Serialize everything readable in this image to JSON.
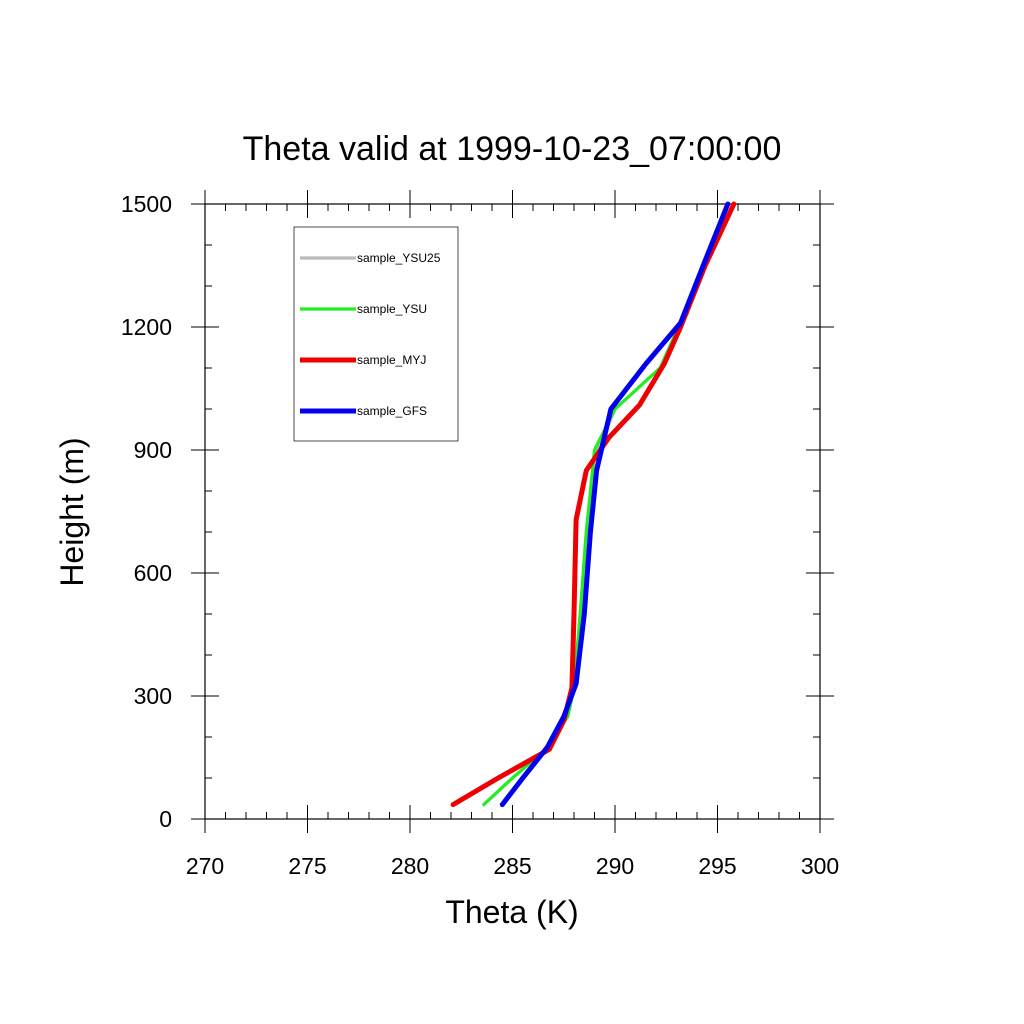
{
  "chart_data": {
    "type": "line",
    "title": "Theta valid at 1999-10-23_07:00:00",
    "xlabel": "Theta (K)",
    "ylabel": "Height (m)",
    "xlim": [
      270,
      300
    ],
    "ylim": [
      0,
      1500
    ],
    "xticks": [
      "270",
      "275",
      "280",
      "285",
      "290",
      "295",
      "300"
    ],
    "yticks": [
      "0",
      "300",
      "600",
      "900",
      "1200",
      "1500"
    ],
    "grid": false,
    "legend_position": "top-left",
    "series": [
      {
        "name": "sample_YSU25",
        "color": "#bbbbbb",
        "x": [
          283.6,
          285.0,
          286.5,
          287.7,
          288.0,
          288.3,
          288.6,
          289.0,
          290.0,
          292.2,
          293.1,
          294.4,
          295.8
        ],
        "y": [
          35,
          100,
          165,
          250,
          320,
          500,
          700,
          880,
          1000,
          1100,
          1200,
          1350,
          1500
        ]
      },
      {
        "name": "sample_YSU",
        "color": "#22ee22",
        "x": [
          283.6,
          285.0,
          286.5,
          287.7,
          288.0,
          288.3,
          288.6,
          289.0,
          290.0,
          292.2,
          293.1,
          294.4,
          295.8
        ],
        "y": [
          35,
          100,
          165,
          250,
          320,
          500,
          700,
          900,
          1000,
          1100,
          1200,
          1350,
          1500
        ]
      },
      {
        "name": "sample_MYJ",
        "color": "#ee0000",
        "x": [
          282.1,
          284.3,
          286.8,
          287.5,
          287.9,
          288.0,
          288.1,
          288.6,
          289.7,
          291.2,
          292.4,
          293.2,
          294.4,
          295.8
        ],
        "y": [
          35,
          100,
          170,
          240,
          320,
          500,
          730,
          850,
          930,
          1010,
          1110,
          1200,
          1350,
          1500
        ]
      },
      {
        "name": "sample_GFS",
        "color": "#0000ee",
        "x": [
          284.5,
          285.5,
          286.7,
          287.5,
          288.1,
          288.5,
          288.8,
          289.1,
          289.8,
          291.5,
          293.2,
          294.3,
          295.5
        ],
        "y": [
          35,
          100,
          175,
          250,
          330,
          500,
          700,
          850,
          1000,
          1110,
          1210,
          1350,
          1500
        ]
      }
    ]
  }
}
